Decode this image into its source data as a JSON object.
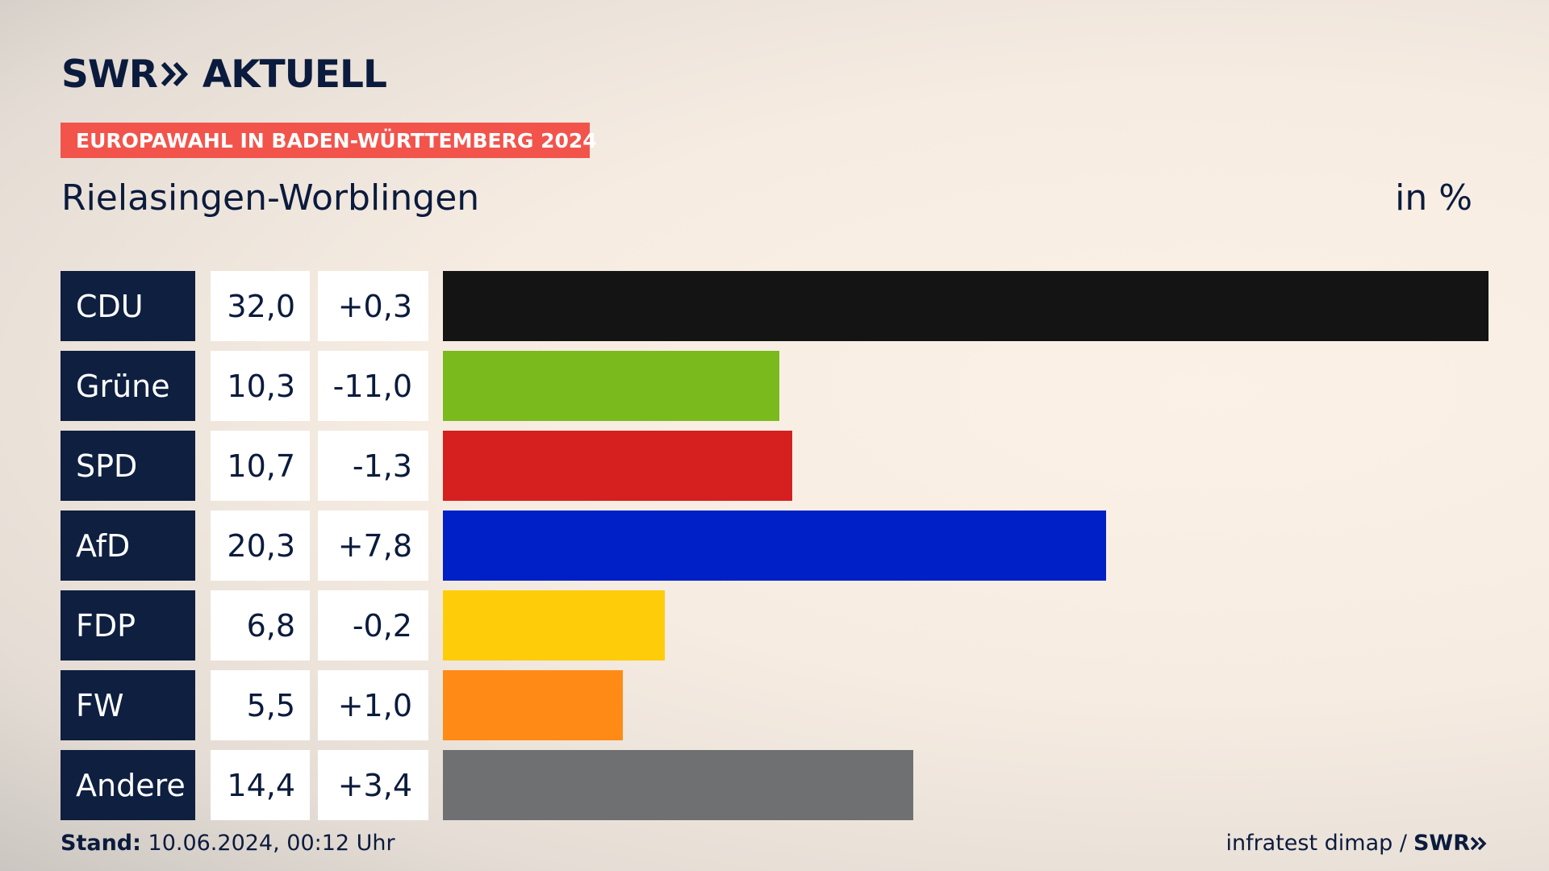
{
  "header": {
    "logo_left": "SWR",
    "logo_right": "AKTUELL",
    "badge": "EUROPAWAHL IN BADEN-WÜRTTEMBERG 2024",
    "title": "Rielasingen-Worblingen",
    "unit": "in %"
  },
  "footer": {
    "stand_label": "Stand:",
    "stand_value": "10.06.2024, 00:12 Uhr",
    "source": "infratest dimap /",
    "brand": "SWR"
  },
  "chart_data": {
    "type": "bar",
    "orientation": "horizontal",
    "categories": [
      "CDU",
      "Grüne",
      "SPD",
      "AfD",
      "FDP",
      "FW",
      "Andere"
    ],
    "values": [
      32.0,
      10.3,
      10.7,
      20.3,
      6.8,
      5.5,
      14.4
    ],
    "value_labels": [
      "32,0",
      "10,3",
      "10,7",
      "20,3",
      "6,8",
      "5,5",
      "14,4"
    ],
    "diff_labels": [
      "+0,3",
      "-11,0",
      "-1,3",
      "+7,8",
      "-0,2",
      "+1,0",
      "+3,4"
    ],
    "colors": [
      "#141414",
      "#7aba1d",
      "#d61f1f",
      "#0020c7",
      "#ffcc0a",
      "#ff8b16",
      "#6f7072"
    ],
    "xlim": [
      0,
      32.0
    ]
  }
}
